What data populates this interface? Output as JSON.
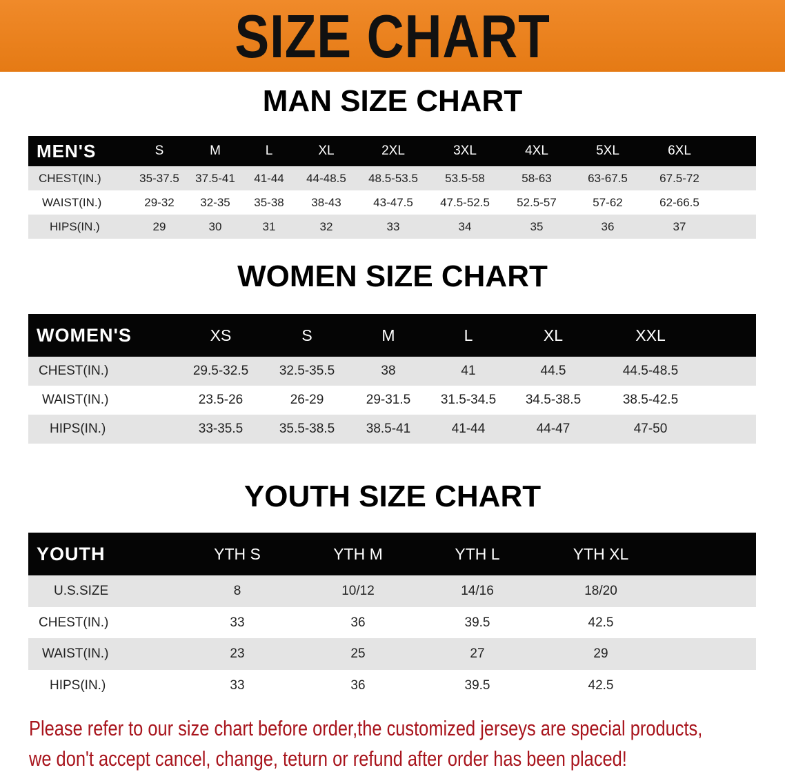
{
  "banner": {
    "title": "SIZE CHART",
    "color": "#ec821f"
  },
  "men": {
    "title": "MAN SIZE CHART",
    "header": [
      "MEN'S",
      "S",
      "M",
      "L",
      "XL",
      "2XL",
      "3XL",
      "4XL",
      "5XL",
      "6XL"
    ],
    "rows": [
      [
        "CHEST(IN.)",
        "35-37.5",
        "37.5-41",
        "41-44",
        "44-48.5",
        "48.5-53.5",
        "53.5-58",
        "58-63",
        "63-67.5",
        "67.5-72"
      ],
      [
        "WAIST(IN.)",
        "29-32",
        "32-35",
        "35-38",
        "38-43",
        "43-47.5",
        "47.5-52.5",
        "52.5-57",
        "57-62",
        "62-66.5"
      ],
      [
        "HIPS(IN.)",
        "29",
        "30",
        "31",
        "32",
        "33",
        "34",
        "35",
        "36",
        "37"
      ]
    ]
  },
  "women": {
    "title": "WOMEN SIZE CHART",
    "header": [
      "WOMEN'S",
      "XS",
      "S",
      "M",
      "L",
      "XL",
      "XXL"
    ],
    "rows": [
      [
        "CHEST(IN.)",
        "29.5-32.5",
        "32.5-35.5",
        "38",
        "41",
        "44.5",
        "44.5-48.5"
      ],
      [
        "WAIST(IN.)",
        "23.5-26",
        "26-29",
        "29-31.5",
        "31.5-34.5",
        "34.5-38.5",
        "38.5-42.5"
      ],
      [
        "HIPS(IN.)",
        "33-35.5",
        "35.5-38.5",
        "38.5-41",
        "41-44",
        "44-47",
        "47-50"
      ]
    ]
  },
  "youth": {
    "title": "YOUTH SIZE CHART",
    "header": [
      "YOUTH",
      "YTH S",
      "YTH M",
      "YTH L",
      "YTH XL"
    ],
    "rows": [
      [
        "U.S.SIZE",
        "8",
        "10/12",
        "14/16",
        "18/20"
      ],
      [
        "CHEST(IN.)",
        "33",
        "36",
        "39.5",
        "42.5"
      ],
      [
        "WAIST(IN.)",
        "23",
        "25",
        "27",
        "29"
      ],
      [
        "HIPS(IN.)",
        "33",
        "36",
        "39.5",
        "42.5"
      ]
    ]
  },
  "note": {
    "line1": "Please refer to our size chart before order,the customized jerseys are special products,",
    "line2": "we don't accept cancel, change, teturn or refund after order has been placed!",
    "color": "#a8141c"
  }
}
